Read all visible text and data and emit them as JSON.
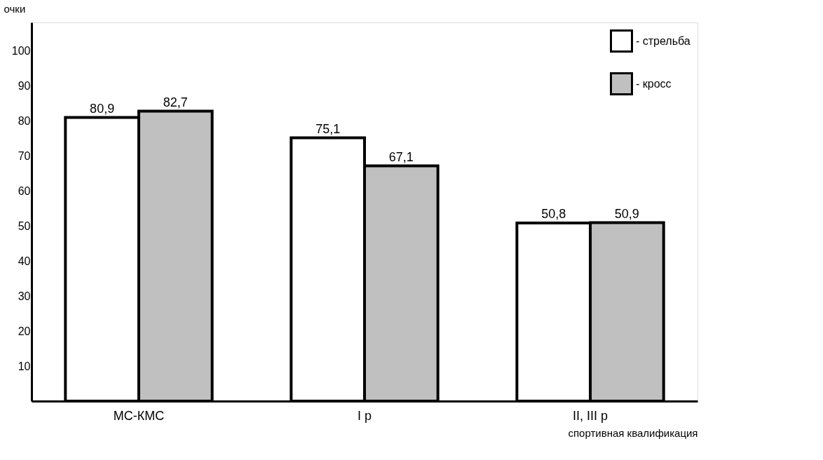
{
  "chart_data": {
    "type": "bar",
    "categories": [
      "МС-КМС",
      "I р",
      "II, III р"
    ],
    "series": [
      {
        "name": "- стрельба",
        "color": "#ffffff",
        "values": [
          80.9,
          75.1,
          50.8
        ],
        "value_labels": [
          "80,9",
          "75,1",
          "50,8"
        ]
      },
      {
        "name": "- кросс",
        "color": "#c0c0c0",
        "values": [
          82.7,
          67.1,
          50.9
        ],
        "value_labels": [
          "82,7",
          "67,1",
          "50,9"
        ]
      }
    ],
    "xlabel": "спортивная квалификация",
    "ylabel": "очки",
    "ylim": [
      0,
      108
    ],
    "yticks": [
      10,
      20,
      30,
      40,
      50,
      60,
      70,
      80,
      90,
      100
    ],
    "grid": false,
    "legend": "top right"
  }
}
